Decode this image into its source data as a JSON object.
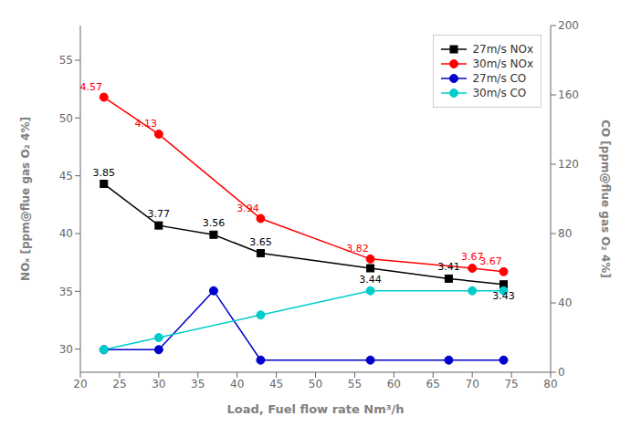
{
  "chart_data": {
    "type": "line",
    "xlabel": "Load, Fuel flow rate Nm³/h",
    "ylabel": "NOₓ [ppm@flue gas O₂ 4%]",
    "y2label": "CO [ppm@flue gas O₂ 4%]",
    "xlim": [
      20,
      80
    ],
    "xticks": [
      20,
      25,
      30,
      35,
      40,
      45,
      50,
      55,
      60,
      65,
      70,
      75,
      80
    ],
    "ylim": [
      28,
      58
    ],
    "yticks": [
      30,
      35,
      40,
      45,
      50,
      55
    ],
    "y2lim": [
      0,
      200
    ],
    "y2ticks": [
      0,
      40,
      80,
      120,
      160,
      200
    ],
    "grid": false,
    "legend": "upper right",
    "series": [
      {
        "name": "27m/s NOx",
        "color": "#000000",
        "marker": "square",
        "x": [
          23,
          30,
          37,
          43,
          57,
          67,
          74
        ],
        "values": [
          44.3,
          40.7,
          39.9,
          38.3,
          37.0,
          36.1,
          35.6
        ]
      },
      {
        "name": "30m/s NOx",
        "color": "#ff0000",
        "marker": "circle",
        "x": [
          23,
          30,
          43,
          57,
          70,
          74
        ],
        "values": [
          51.8,
          48.6,
          41.3,
          37.8,
          37.0,
          36.7
        ]
      },
      {
        "name": "27m/s CO",
        "color": "#0000cc",
        "marker": "circle",
        "axis": "y2",
        "x": [
          23,
          30,
          37,
          43,
          57,
          67,
          74
        ],
        "values": [
          13,
          13,
          47,
          7,
          7,
          7,
          7
        ]
      },
      {
        "name": "30m/s CO",
        "color": "#00cccc",
        "marker": "circle",
        "axis": "y2",
        "x": [
          23,
          30,
          43,
          57,
          70,
          74
        ],
        "values": [
          13,
          20,
          33,
          47,
          47,
          47
        ]
      }
    ],
    "annotations": [
      {
        "text": "3.85",
        "x": 23,
        "y": 44.3,
        "color": "black"
      },
      {
        "text": "3.77",
        "x": 30,
        "y": 40.7,
        "color": "black"
      },
      {
        "text": "3.56",
        "x": 37,
        "y": 39.9,
        "color": "black"
      },
      {
        "text": "3.65",
        "x": 43,
        "y": 38.3,
        "color": "black"
      },
      {
        "text": "3.44",
        "x": 57,
        "y": 37.0,
        "color": "black"
      },
      {
        "text": "3.41",
        "x": 67,
        "y": 36.1,
        "color": "black"
      },
      {
        "text": "3.43",
        "x": 74,
        "y": 35.6,
        "color": "black"
      },
      {
        "text": "4.57",
        "x": 23,
        "y": 51.8,
        "color": "red"
      },
      {
        "text": "4.13",
        "x": 30,
        "y": 48.6,
        "color": "red"
      },
      {
        "text": "3.94",
        "x": 43,
        "y": 41.3,
        "color": "red"
      },
      {
        "text": "3.82",
        "x": 57,
        "y": 37.8,
        "color": "red"
      },
      {
        "text": "3.67",
        "x": 70,
        "y": 37.0,
        "color": "red"
      },
      {
        "text": "3.67",
        "x": 74,
        "y": 36.7,
        "color": "red"
      }
    ]
  }
}
